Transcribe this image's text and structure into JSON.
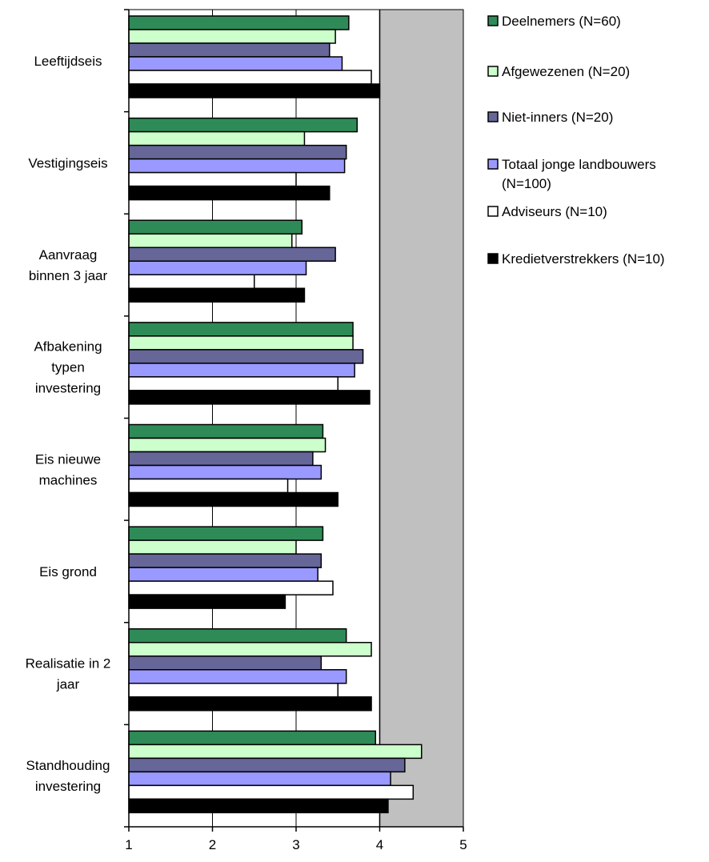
{
  "chart_data": {
    "type": "bar",
    "orientation": "horizontal",
    "xlim": [
      1,
      5
    ],
    "xticks": [
      "1",
      "2",
      "3",
      "4",
      "5"
    ],
    "grid": true,
    "legend_position": "right",
    "categories": [
      [
        "Leeftijdseis"
      ],
      [
        "Vestigingseis"
      ],
      [
        "Aanvraag",
        "binnen 3 jaar"
      ],
      [
        "Afbakening",
        "typen",
        "investering"
      ],
      [
        "Eis nieuwe",
        "machines"
      ],
      [
        "Eis grond"
      ],
      [
        "Realisatie in 2",
        "jaar"
      ],
      [
        "Standhouding",
        "investering"
      ]
    ],
    "series": [
      {
        "name": [
          "Deelnemers (N=60)"
        ],
        "color": "#2e8b57",
        "values": [
          3.63,
          3.73,
          3.07,
          3.68,
          3.32,
          3.32,
          3.6,
          3.95
        ]
      },
      {
        "name": [
          "Afgewezenen (N=20)"
        ],
        "color": "#ccffcc",
        "values": [
          3.47,
          3.1,
          2.95,
          3.68,
          3.35,
          3.0,
          3.9,
          4.5
        ]
      },
      {
        "name": [
          "Niet-inners (N=20)"
        ],
        "color": "#666699",
        "values": [
          3.4,
          3.6,
          3.47,
          3.8,
          3.2,
          3.3,
          3.3,
          4.3
        ]
      },
      {
        "name": [
          "Totaal jonge landbouwers",
          "(N=100)"
        ],
        "color": "#9999ff",
        "values": [
          3.55,
          3.58,
          3.12,
          3.7,
          3.3,
          3.26,
          3.6,
          4.13
        ]
      },
      {
        "name": [
          "Adviseurs (N=10)"
        ],
        "color": "#ffffff",
        "values": [
          3.9,
          3.0,
          2.5,
          3.5,
          2.9,
          3.44,
          3.5,
          4.4
        ]
      },
      {
        "name": [
          "Kredietverstrekkers (N=10)"
        ],
        "color": "#000000",
        "values": [
          4.0,
          3.4,
          3.1,
          3.88,
          3.5,
          2.87,
          3.9,
          4.1
        ]
      }
    ]
  }
}
